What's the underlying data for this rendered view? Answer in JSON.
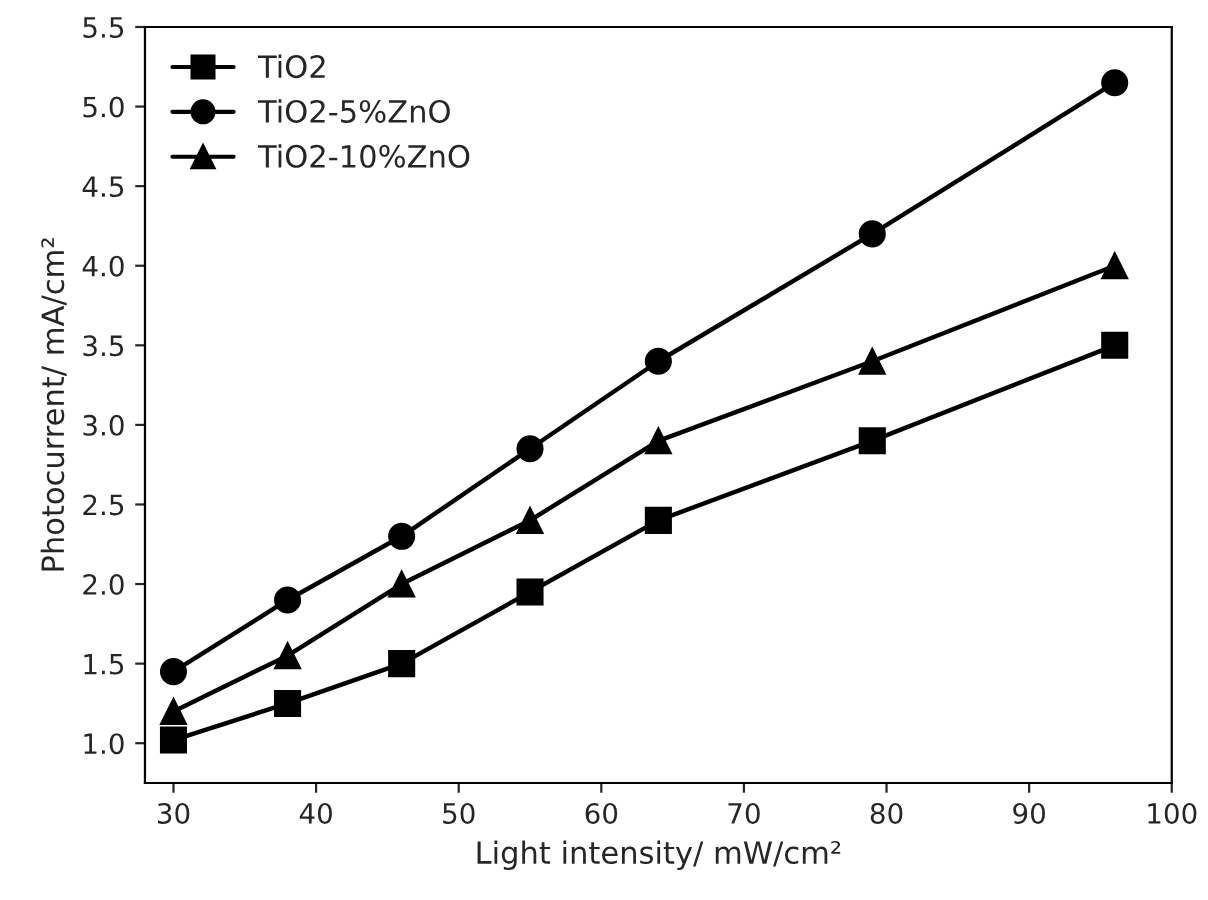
{
  "chart_data": {
    "type": "line",
    "xlabel": "Light intensity/ mW/cm²",
    "ylabel": "Photocurrent/ mA/cm²",
    "x": [
      30,
      38,
      46,
      55,
      64,
      79,
      96
    ],
    "series": [
      {
        "name": "TiO2",
        "color": "#000000",
        "marker": "square",
        "values": [
          1.02,
          1.25,
          1.5,
          1.95,
          2.4,
          2.9,
          3.5
        ]
      },
      {
        "name": "TiO2-5%ZnO",
        "color": "#000000",
        "marker": "circle",
        "values": [
          1.45,
          1.9,
          2.3,
          2.85,
          3.4,
          4.2,
          5.15
        ]
      },
      {
        "name": "TiO2-10%ZnO",
        "color": "#000000",
        "marker": "triangle",
        "values": [
          1.2,
          1.55,
          2.0,
          2.4,
          2.9,
          3.4,
          4.0
        ]
      }
    ],
    "xlim": [
      28,
      100
    ],
    "xticks": [
      30,
      40,
      50,
      60,
      70,
      80,
      90,
      100
    ],
    "ylim": [
      0.75,
      5.5
    ],
    "yticks": [
      {
        "value": 1,
        "label": "1.0"
      },
      1.5,
      {
        "value": 2,
        "label": "2.0"
      },
      2.5,
      {
        "value": 3,
        "label": "3.0"
      },
      3.5,
      {
        "value": 4,
        "label": "4.0"
      },
      4.5,
      {
        "value": 5,
        "label": "5.0"
      },
      5.5
    ],
    "grid": false,
    "legend": "top left",
    "line_style": "solid"
  }
}
